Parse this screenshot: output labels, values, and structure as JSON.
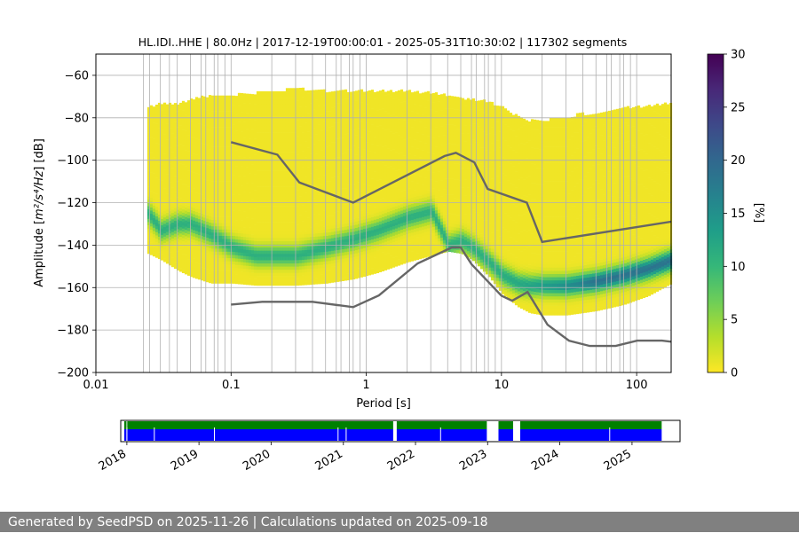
{
  "chart_data": [
    {
      "type": "heatmap",
      "title": "HL.IDI..HHE | 80.0Hz | 2017-12-19T00:00:01 - 2025-05-31T10:30:02 | 117302 segments",
      "xlabel": "Period [s]",
      "ylabel_prefix": "Amplitude [",
      "ylabel_math": "m²/s⁴/Hz",
      "ylabel_suffix": "] [dB]",
      "x_scale": "log",
      "xlim": [
        0.01,
        180
      ],
      "ylim": [
        -200,
        -50
      ],
      "x_ticks": [
        {
          "value": 0.01,
          "label": "0.01"
        },
        {
          "value": 0.1,
          "label": "0.1"
        },
        {
          "value": 1,
          "label": "1"
        },
        {
          "value": 10,
          "label": "10"
        },
        {
          "value": 100,
          "label": "100"
        }
      ],
      "y_ticks": [
        {
          "value": -60,
          "label": "−60"
        },
        {
          "value": -80,
          "label": "−80"
        },
        {
          "value": -100,
          "label": "−100"
        },
        {
          "value": -120,
          "label": "−120"
        },
        {
          "value": -140,
          "label": "−140"
        },
        {
          "value": -160,
          "label": "−160"
        },
        {
          "value": -180,
          "label": "−180"
        },
        {
          "value": -200,
          "label": "−200"
        }
      ],
      "grid_periods": [
        0.0225,
        0.025,
        0.03,
        0.035,
        0.04,
        0.05,
        0.06,
        0.065,
        0.075,
        0.08,
        0.09,
        0.1,
        0.2,
        0.3,
        0.4,
        0.5,
        0.6,
        0.65,
        0.75,
        0.8,
        0.9,
        1,
        2,
        3,
        4,
        5,
        6,
        6.5,
        7.5,
        8,
        9,
        10,
        20,
        30,
        40,
        50,
        60,
        65,
        75,
        80,
        90,
        100
      ],
      "periodogram_x": [
        0.024,
        0.03,
        0.04,
        0.05,
        0.07,
        0.1,
        0.15,
        0.2,
        0.3,
        0.5,
        0.8,
        1.2,
        2,
        3,
        4,
        5,
        6,
        8,
        10,
        13,
        16,
        20,
        30,
        50,
        80,
        120,
        180
      ],
      "mode_db": [
        -125,
        -133,
        -130,
        -130,
        -135,
        -141,
        -145,
        -145,
        -145,
        -141,
        -137,
        -133,
        -127,
        -124,
        -140,
        -138,
        -141,
        -148,
        -154,
        -158,
        -159,
        -159,
        -159,
        -157,
        -154,
        -151,
        -147
      ],
      "upper_db": [
        -76,
        -74,
        -74,
        -72,
        -70,
        -70,
        -69,
        -68,
        -67,
        -68,
        -68,
        -68,
        -68,
        -69,
        -70,
        -72,
        -72,
        -73,
        -76,
        -80,
        -82,
        -82,
        -80,
        -78,
        -76,
        -75,
        -74
      ],
      "lower_db": [
        -144,
        -147,
        -152,
        -155,
        -158,
        -158,
        -159,
        -159,
        -159,
        -158,
        -156,
        -153,
        -148,
        -145,
        -143,
        -144,
        -147,
        -155,
        -163,
        -169,
        -172,
        -173,
        -173,
        -171,
        -168,
        -164,
        -158
      ],
      "colorbar": {
        "label": "[%]",
        "range": [
          0,
          30
        ],
        "ticks": [
          0,
          5,
          10,
          15,
          20,
          25,
          30
        ],
        "colors": [
          "#fde725",
          "#b5de2b",
          "#6ece58",
          "#35b779",
          "#1f9e89",
          "#26828e",
          "#31688e",
          "#3e4989",
          "#482878",
          "#440154"
        ]
      },
      "series": [
        {
          "role": "high noise model",
          "color": "#666666",
          "periods": [
            0.1,
            0.22,
            0.32,
            0.8,
            3.8,
            4.6,
            6.3,
            7.9,
            15.4,
            20,
            354.8
          ],
          "db": [
            -91.5,
            -97.4,
            -110.5,
            -120.0,
            -98.0,
            -96.5,
            -101.0,
            -113.5,
            -120.0,
            -138.5,
            -126.0
          ]
        },
        {
          "role": "low noise model",
          "color": "#666666",
          "periods": [
            0.1,
            0.17,
            0.4,
            0.8,
            1.24,
            2.4,
            4.3,
            5.0,
            6.0,
            10.0,
            12.0,
            15.6,
            21.9,
            31.6,
            45.0,
            70.0,
            101.0,
            154.0,
            328.0
          ],
          "db": [
            -168.0,
            -166.7,
            -166.7,
            -169.2,
            -163.7,
            -148.6,
            -141.1,
            -141.1,
            -149.0,
            -163.8,
            -166.2,
            -162.1,
            -177.5,
            -185.0,
            -187.5,
            -187.5,
            -185.0,
            -185.0,
            -187.5
          ]
        }
      ]
    },
    {
      "type": "availability",
      "x_ticks": [
        "2018",
        "2019",
        "2020",
        "2021",
        "2022",
        "2023",
        "2024",
        "2025"
      ],
      "x_range": [
        "2017-12-01",
        "2025-09-01"
      ],
      "coverage_colors": {
        "gap": "#ffffff",
        "processed": "#008000",
        "data": "#0000ff"
      },
      "coverage": [
        {
          "start": "2017-12-19",
          "end": "2017-12-30"
        },
        {
          "start": "2018-01-03",
          "end": "2021-09-10"
        },
        {
          "start": "2021-09-28",
          "end": "2022-12-28"
        },
        {
          "start": "2023-02-25",
          "end": "2023-05-10"
        },
        {
          "start": "2023-06-15",
          "end": "2025-05-31"
        }
      ],
      "gaps": [
        "2018-01-01",
        "2018-05-20",
        "2019-03-20",
        "2020-12-05",
        "2021-01-15",
        "2022-05-08",
        "2024-09-10"
      ]
    }
  ],
  "footer": {
    "text": "Generated by SeedPSD on 2025-11-26 | Calculations updated on 2025-09-18"
  }
}
